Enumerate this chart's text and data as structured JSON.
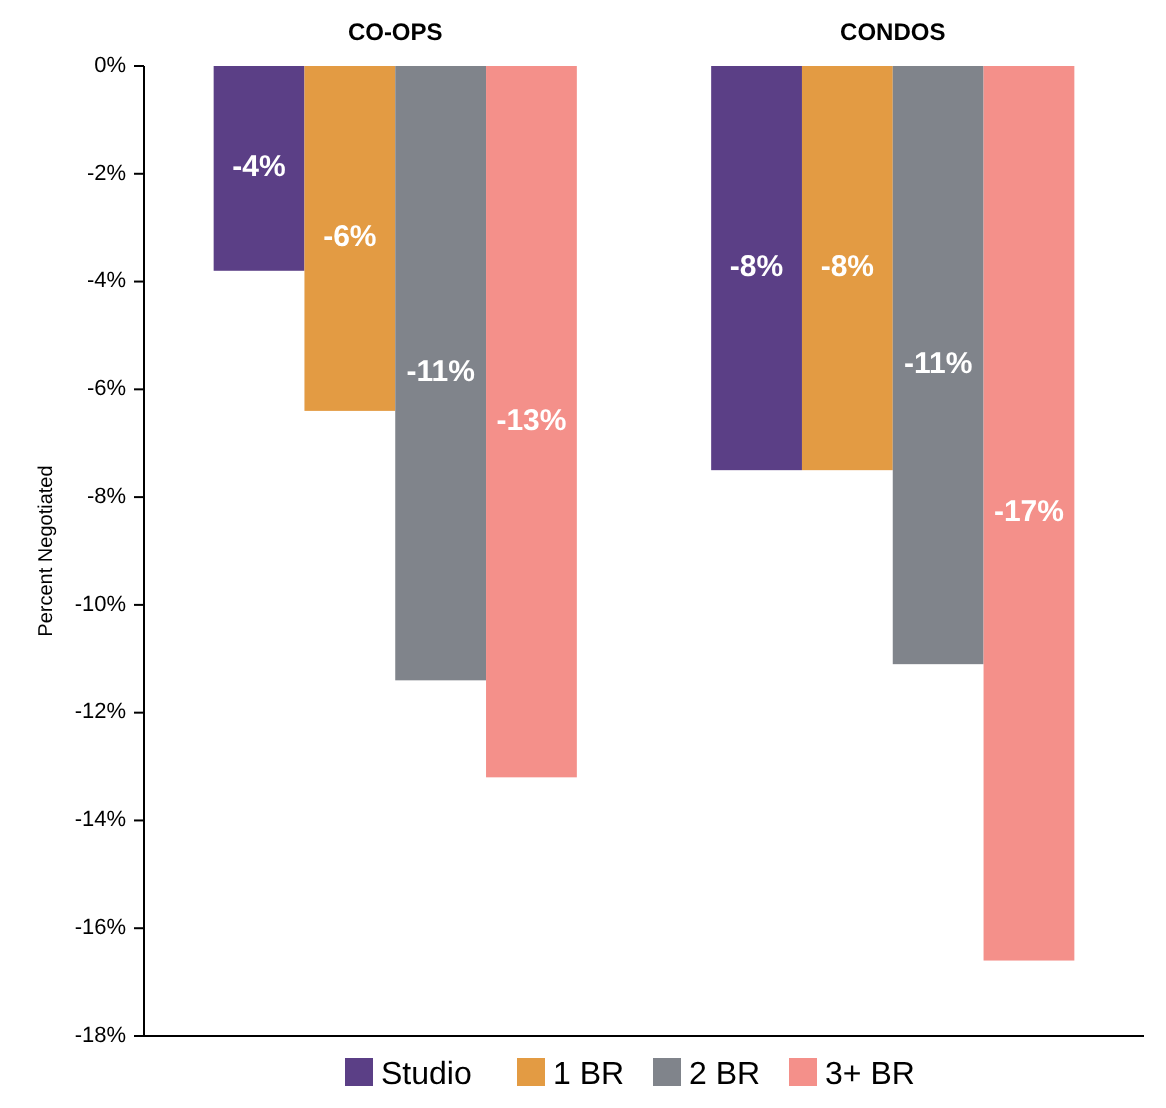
{
  "chart_data": {
    "type": "bar",
    "categories": [
      "CO-OPS",
      "CONDOS"
    ],
    "ylabel": "Percent Negotiated",
    "ylim": [
      -18,
      0
    ],
    "yticks": [
      {
        "value": 0,
        "label": "0%"
      },
      {
        "value": -2,
        "label": "-2%"
      },
      {
        "value": -4,
        "label": "-4%"
      },
      {
        "value": -6,
        "label": "-6%"
      },
      {
        "value": -8,
        "label": "-8%"
      },
      {
        "value": -10,
        "label": "-10%"
      },
      {
        "value": -12,
        "label": "-12%"
      },
      {
        "value": -14,
        "label": "-14%"
      },
      {
        "value": -16,
        "label": "-16%"
      },
      {
        "value": -18,
        "label": "-18%"
      }
    ],
    "grid": false,
    "legend": "bottom",
    "series": [
      {
        "name": "Studio",
        "color": "#5b3f86",
        "values": [
          -3.8,
          -7.5
        ],
        "value_labels": [
          "-4%",
          "-8%"
        ]
      },
      {
        "name": "1 BR",
        "color": "#e39b43",
        "values": [
          -6.4,
          -7.5
        ],
        "value_labels": [
          "-6%",
          "-8%"
        ]
      },
      {
        "name": "2 BR",
        "color": "#80848b",
        "values": [
          -11.4,
          -11.1
        ],
        "value_labels": [
          "-11%",
          "-11%"
        ]
      },
      {
        "name": "3+ BR",
        "color": "#f4908a",
        "values": [
          -13.2,
          -16.6
        ],
        "value_labels": [
          "-13%",
          "-17%"
        ]
      }
    ]
  }
}
